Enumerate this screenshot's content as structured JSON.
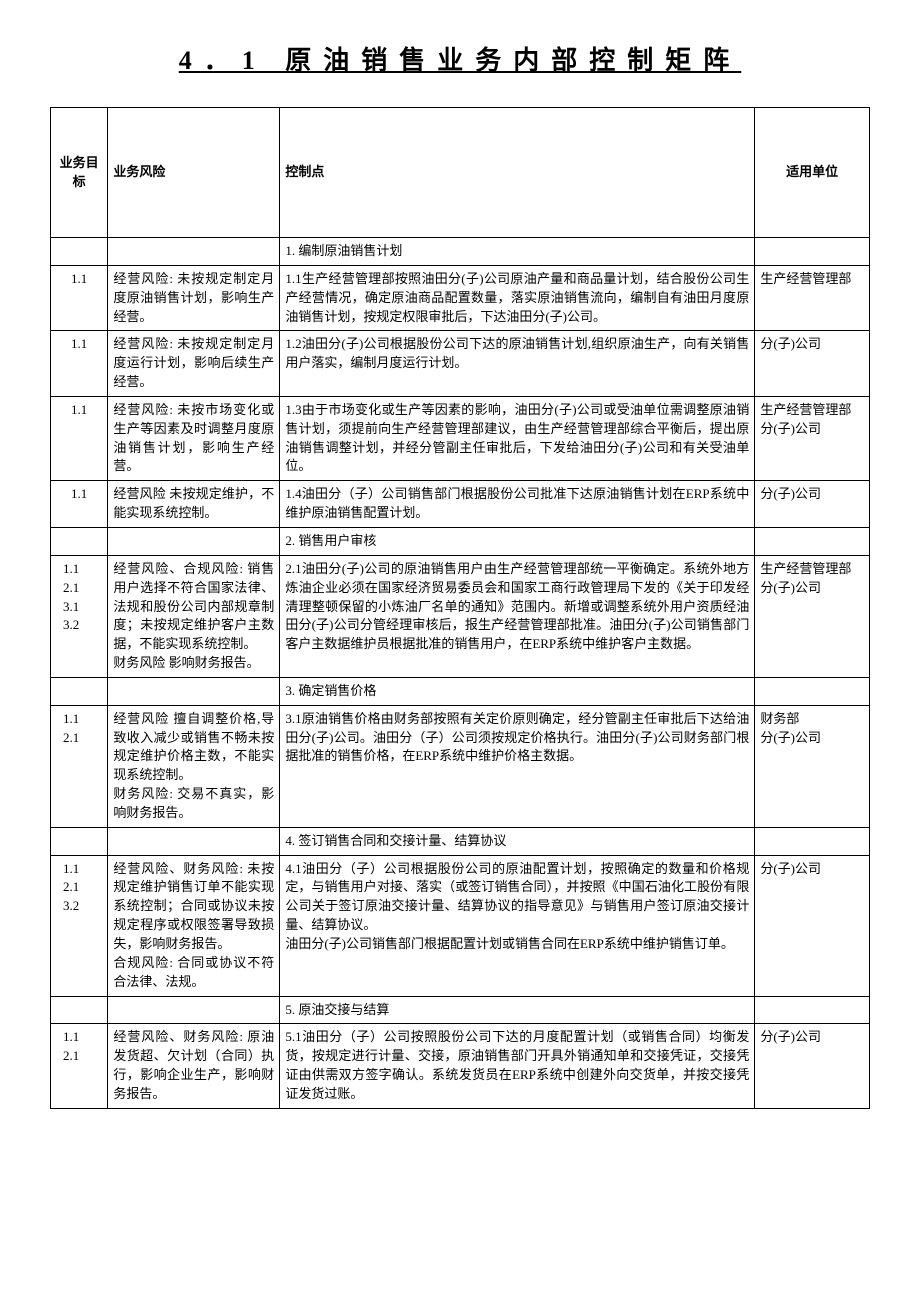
{
  "title": "4．1 原油销售业务内部控制矩阵",
  "headers": {
    "col1": "业务目标",
    "col2": "业务风险",
    "col3": "控制点",
    "col4": "适用单位"
  },
  "sections": [
    {
      "header_ctrl": "1. 编制原油销售计划",
      "rows": [
        {
          "obj": "1.1",
          "risk": "经营风险: 未按规定制定月度原油销售计划，影响生产经营。",
          "ctrl": "1.1生产经营管理部按照油田分(子)公司原油产量和商品量计划，结合股份公司生产经营情况，确定原油商品配置数量，落实原油销售流向，编制自有油田月度原油销售计划，按规定权限审批后，下达油田分(子)公司。",
          "unit": "生产经营管理部"
        },
        {
          "obj": "1.1",
          "risk": "经营风险: 未按规定制定月度运行计划，影响后续生产经营。",
          "ctrl": "1.2油田分(子)公司根据股份公司下达的原油销售计划,组织原油生产，向有关销售用户落实，编制月度运行计划。",
          "unit": "分(子)公司"
        },
        {
          "obj": "1.1",
          "risk": "经营风险: 未按市场变化或生产等因素及时调整月度原油销售计划，影响生产经营。",
          "ctrl": "1.3由于市场变化或生产等因素的影响，油田分(子)公司或受油单位需调整原油销售计划，须提前向生产经营管理部建议，由生产经营管理部综合平衡后，提出原油销售调整计划，并经分管副主任审批后，下发给油田分(子)公司和有关受油单位。",
          "unit": "生产经营管理部分(子)公司"
        },
        {
          "obj": "1.1",
          "risk": "经营风险 未按规定维护，不能实现系统控制。",
          "ctrl": "1.4油田分（子）公司销售部门根据股份公司批准下达原油销售计划在ERP系统中维护原油销售配置计划。",
          "unit": "分(子)公司"
        }
      ]
    },
    {
      "header_ctrl": "2. 销售用户审核",
      "rows": [
        {
          "obj": "1.1\n2.1\n3.1\n3.2",
          "risk": "经营风险、合规风险: 销售用户选择不符合国家法律、法规和股份公司内部规章制度；未按规定维护客户主数据，不能实现系统控制。\n财务风险 影响财务报告。",
          "ctrl": "2.1油田分(子)公司的原油销售用户由生产经营管理部统一平衡确定。系统外地方炼油企业必须在国家经济贸易委员会和国家工商行政管理局下发的《关于印发经清理整顿保留的小炼油厂名单的通知》范围内。新增或调整系统外用户资质经油田分(子)公司分管经理审核后，报生产经营管理部批准。油田分(子)公司销售部门客户主数据维护员根据批准的销售用户，在ERP系统中维护客户主数据。",
          "unit": "生产经营管理部分(子)公司"
        }
      ]
    },
    {
      "header_ctrl": "3. 确定销售价格",
      "rows": [
        {
          "obj": "1.1\n2.1",
          "risk": "经营风险 擅自调整价格,导致收入减少或销售不畅未按规定维护价格主数，不能实现系统控制。\n财务风险: 交易不真实，影响财务报告。",
          "ctrl": "3.1原油销售价格由财务部按照有关定价原则确定，经分管副主任审批后下达给油田分(子)公司。油田分（子）公司须按规定价格执行。油田分(子)公司财务部门根据批准的销售价格，在ERP系统中维护价格主数据。",
          "unit": "财务部\n分(子)公司"
        }
      ]
    },
    {
      "header_ctrl": "4. 签订销售合同和交接计量、结算协议",
      "rows": [
        {
          "obj": "1.1\n2.1\n3.2",
          "risk": "经营风险、财务风险: 未按规定维护销售订单不能实现系统控制；合同或协议未按规定程序或权限签署导致损失，影响财务报告。\n合规风险: 合同或协议不符合法律、法规。",
          "ctrl": "4.1油田分（子）公司根据股份公司的原油配置计划，按照确定的数量和价格规定，与销售用户对接、落实（或签订销售合同），并按照《中国石油化工股份有限公司关于签订原油交接计量、结算协议的指导意见》与销售用户签订原油交接计量、结算协议。\n油田分(子)公司销售部门根据配置计划或销售合同在ERP系统中维护销售订单。",
          "unit": "分(子)公司"
        }
      ]
    },
    {
      "header_ctrl": "5. 原油交接与结算",
      "rows": [
        {
          "obj": "1.1\n2.1",
          "risk": "经营风险、财务风险: 原油发货超、欠计划（合同）执行，影响企业生产，影响财务报告。",
          "ctrl": "5.1油田分（子）公司按照股份公司下达的月度配置计划（或销售合同）均衡发货，按规定进行计量、交接，原油销售部门开具外销通知单和交接凭证，交接凭证由供需双方签字确认。系统发货员在ERP系统中创建外向交货单，并按交接凭证发货过账。",
          "unit": "分(子)公司"
        }
      ]
    }
  ]
}
